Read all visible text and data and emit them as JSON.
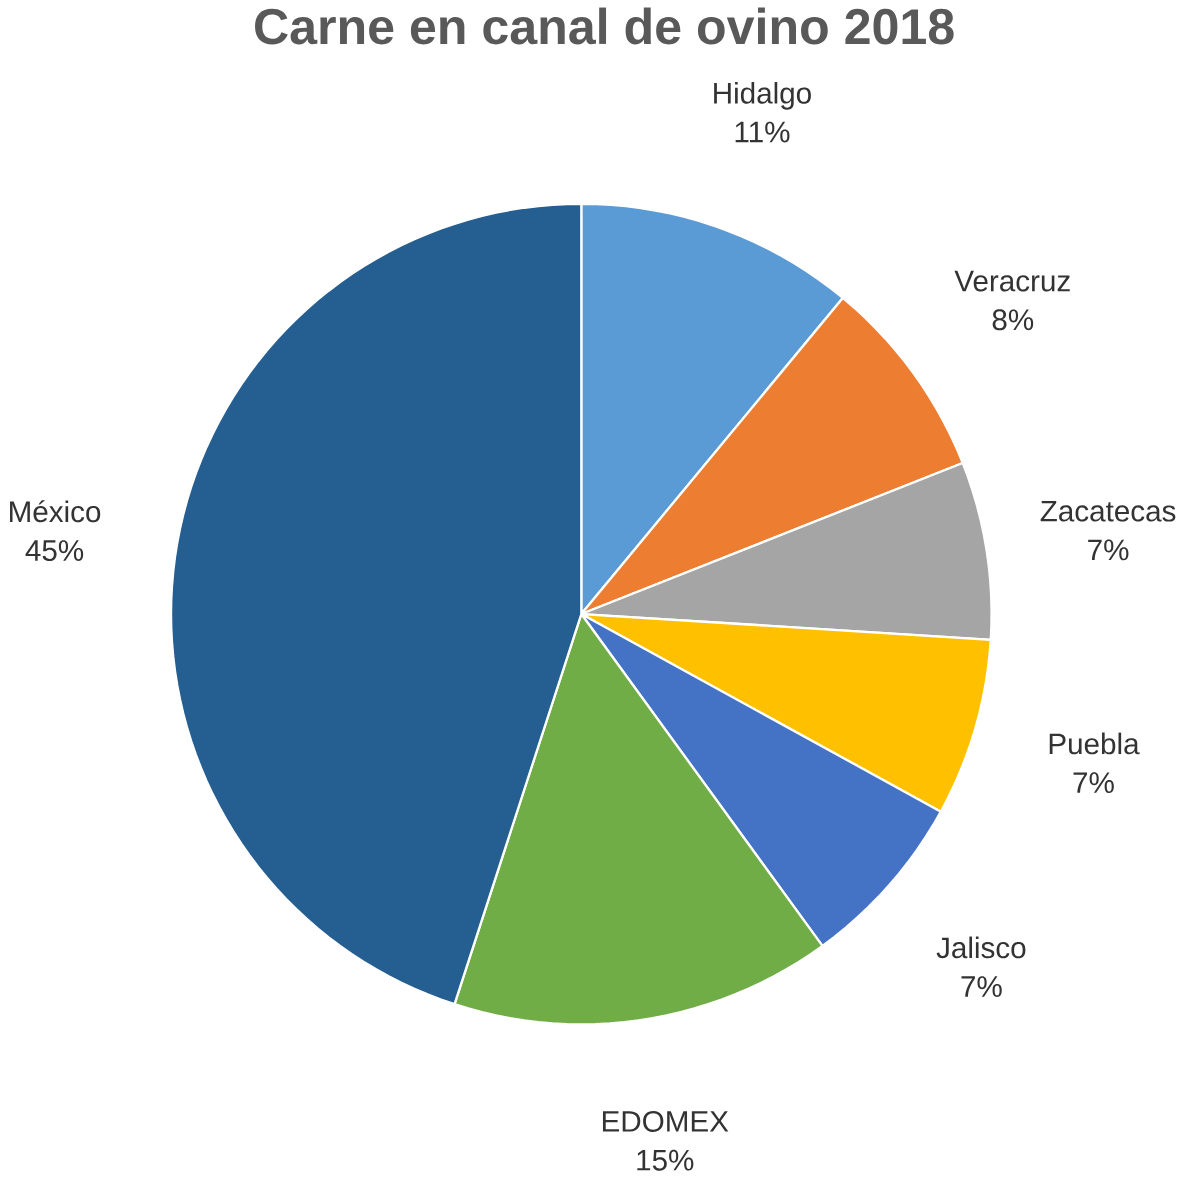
{
  "chart_data": {
    "type": "pie",
    "title": "Carne en canal de ovino 2018",
    "categories": [
      "Hidalgo",
      "Veracruz",
      "Zacatecas",
      "Puebla",
      "Jalisco",
      "EDOMEX",
      "México"
    ],
    "values": [
      11,
      8,
      7,
      7,
      7,
      15,
      45
    ],
    "value_labels": [
      "11%",
      "8%",
      "7%",
      "7%",
      "7%",
      "15%",
      "45%"
    ],
    "colors": [
      "#5b9bd5",
      "#ed7d31",
      "#a5a5a5",
      "#ffc000",
      "#4472c4",
      "#70ad47",
      "#255e91"
    ]
  }
}
